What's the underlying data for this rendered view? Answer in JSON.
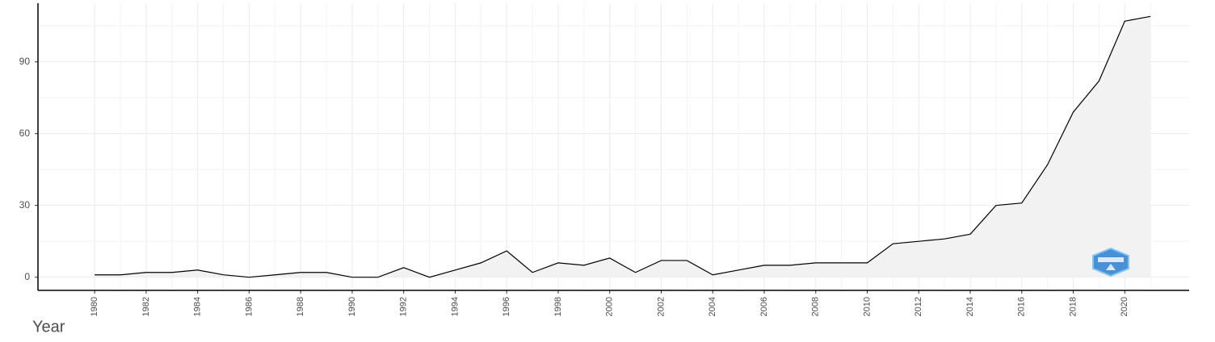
{
  "chart_data": {
    "type": "area",
    "x": [
      1980,
      1981,
      1982,
      1983,
      1984,
      1985,
      1986,
      1987,
      1988,
      1989,
      1990,
      1991,
      1992,
      1993,
      1994,
      1995,
      1996,
      1997,
      1998,
      1999,
      2000,
      2001,
      2002,
      2003,
      2004,
      2005,
      2006,
      2007,
      2008,
      2009,
      2010,
      2011,
      2012,
      2013,
      2014,
      2015,
      2016,
      2017,
      2018,
      2019,
      2020,
      2021
    ],
    "values": [
      1,
      1,
      2,
      2,
      3,
      1,
      0,
      1,
      2,
      2,
      0,
      0,
      4,
      0,
      3,
      6,
      11,
      2,
      6,
      5,
      8,
      2,
      7,
      7,
      1,
      3,
      5,
      5,
      6,
      6,
      6,
      14,
      15,
      16,
      18,
      30,
      31,
      47,
      69,
      82,
      107,
      109
    ],
    "color": "#000000",
    "fill": "#f2f2f2",
    "xlabel": "Year",
    "xlim": [
      1977.8,
      2022.5
    ],
    "xticks": [
      1980,
      1982,
      1984,
      1986,
      1988,
      1990,
      1992,
      1994,
      1996,
      1998,
      2000,
      2002,
      2004,
      2006,
      2008,
      2010,
      2012,
      2014,
      2016,
      2018,
      2020
    ],
    "ylim": [
      -5.5,
      114.5
    ],
    "yticks": [
      0,
      30,
      60,
      90
    ],
    "grid": true
  }
}
